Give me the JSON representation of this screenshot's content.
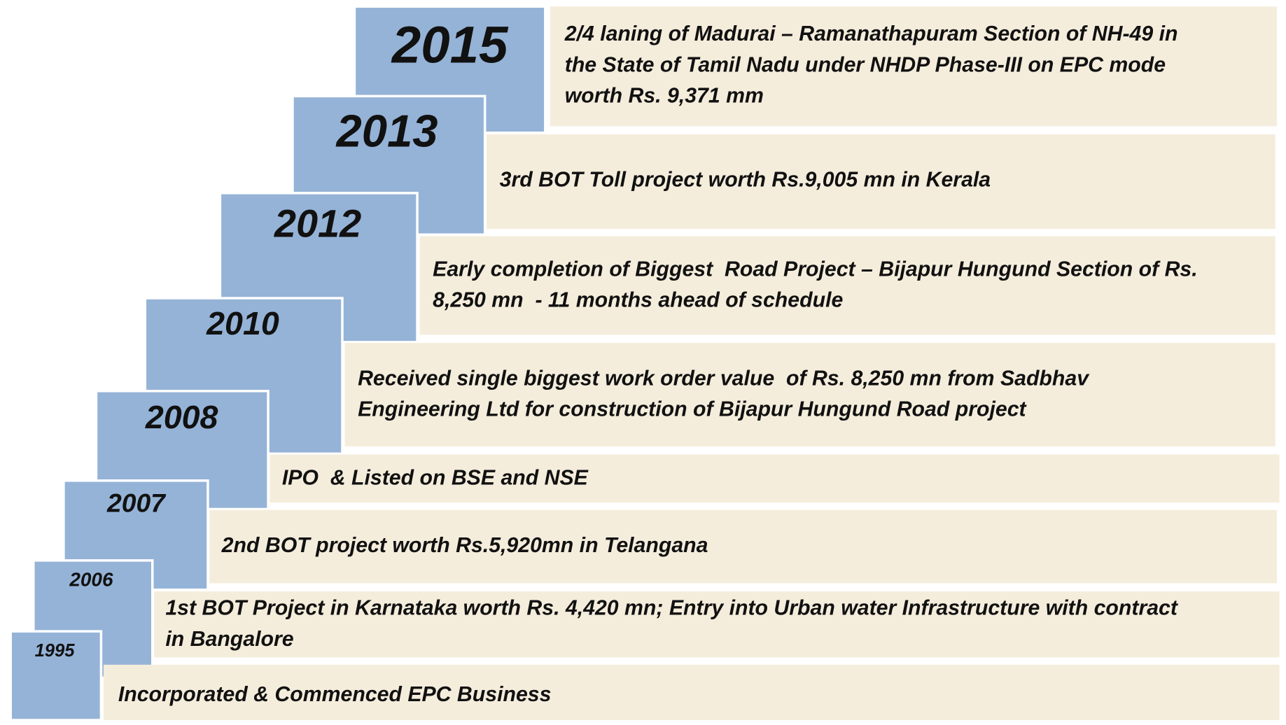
{
  "milestones": [
    {
      "year": "2015",
      "lines": [
        "2/4 laning of Madurai – Ramanathapuram Section of NH-49 in",
        "the State of Tamil Nadu under NHDP Phase-III on EPC mode",
        "worth Rs. 9,371 mm"
      ]
    },
    {
      "year": "2013",
      "lines": [
        "3rd BOT Toll project worth Rs.9,005 mn in Kerala"
      ]
    },
    {
      "year": "2012",
      "lines": [
        "Early completion of Biggest  Road Project – Bijapur Hungund Section of Rs.",
        "8,250 mn  - 11 months ahead of schedule"
      ]
    },
    {
      "year": "2010",
      "lines": [
        "Received single biggest work order value  of Rs. 8,250 mn from Sadbhav",
        "Engineering Ltd for construction of Bijapur Hungund Road project"
      ]
    },
    {
      "year": "2008",
      "lines": [
        "IPO  & Listed on BSE and NSE"
      ]
    },
    {
      "year": "2007",
      "lines": [
        "2nd BOT project worth Rs.5,920mn in Telangana"
      ]
    },
    {
      "year": "2006",
      "lines": [
        "1st BOT Project in Karnataka worth Rs. 4,420 mn; Entry into Urban water Infrastructure with contract",
        "in Bangalore"
      ]
    },
    {
      "year": "1995",
      "lines": [
        "Incorporated & Commenced EPC Business"
      ]
    }
  ]
}
